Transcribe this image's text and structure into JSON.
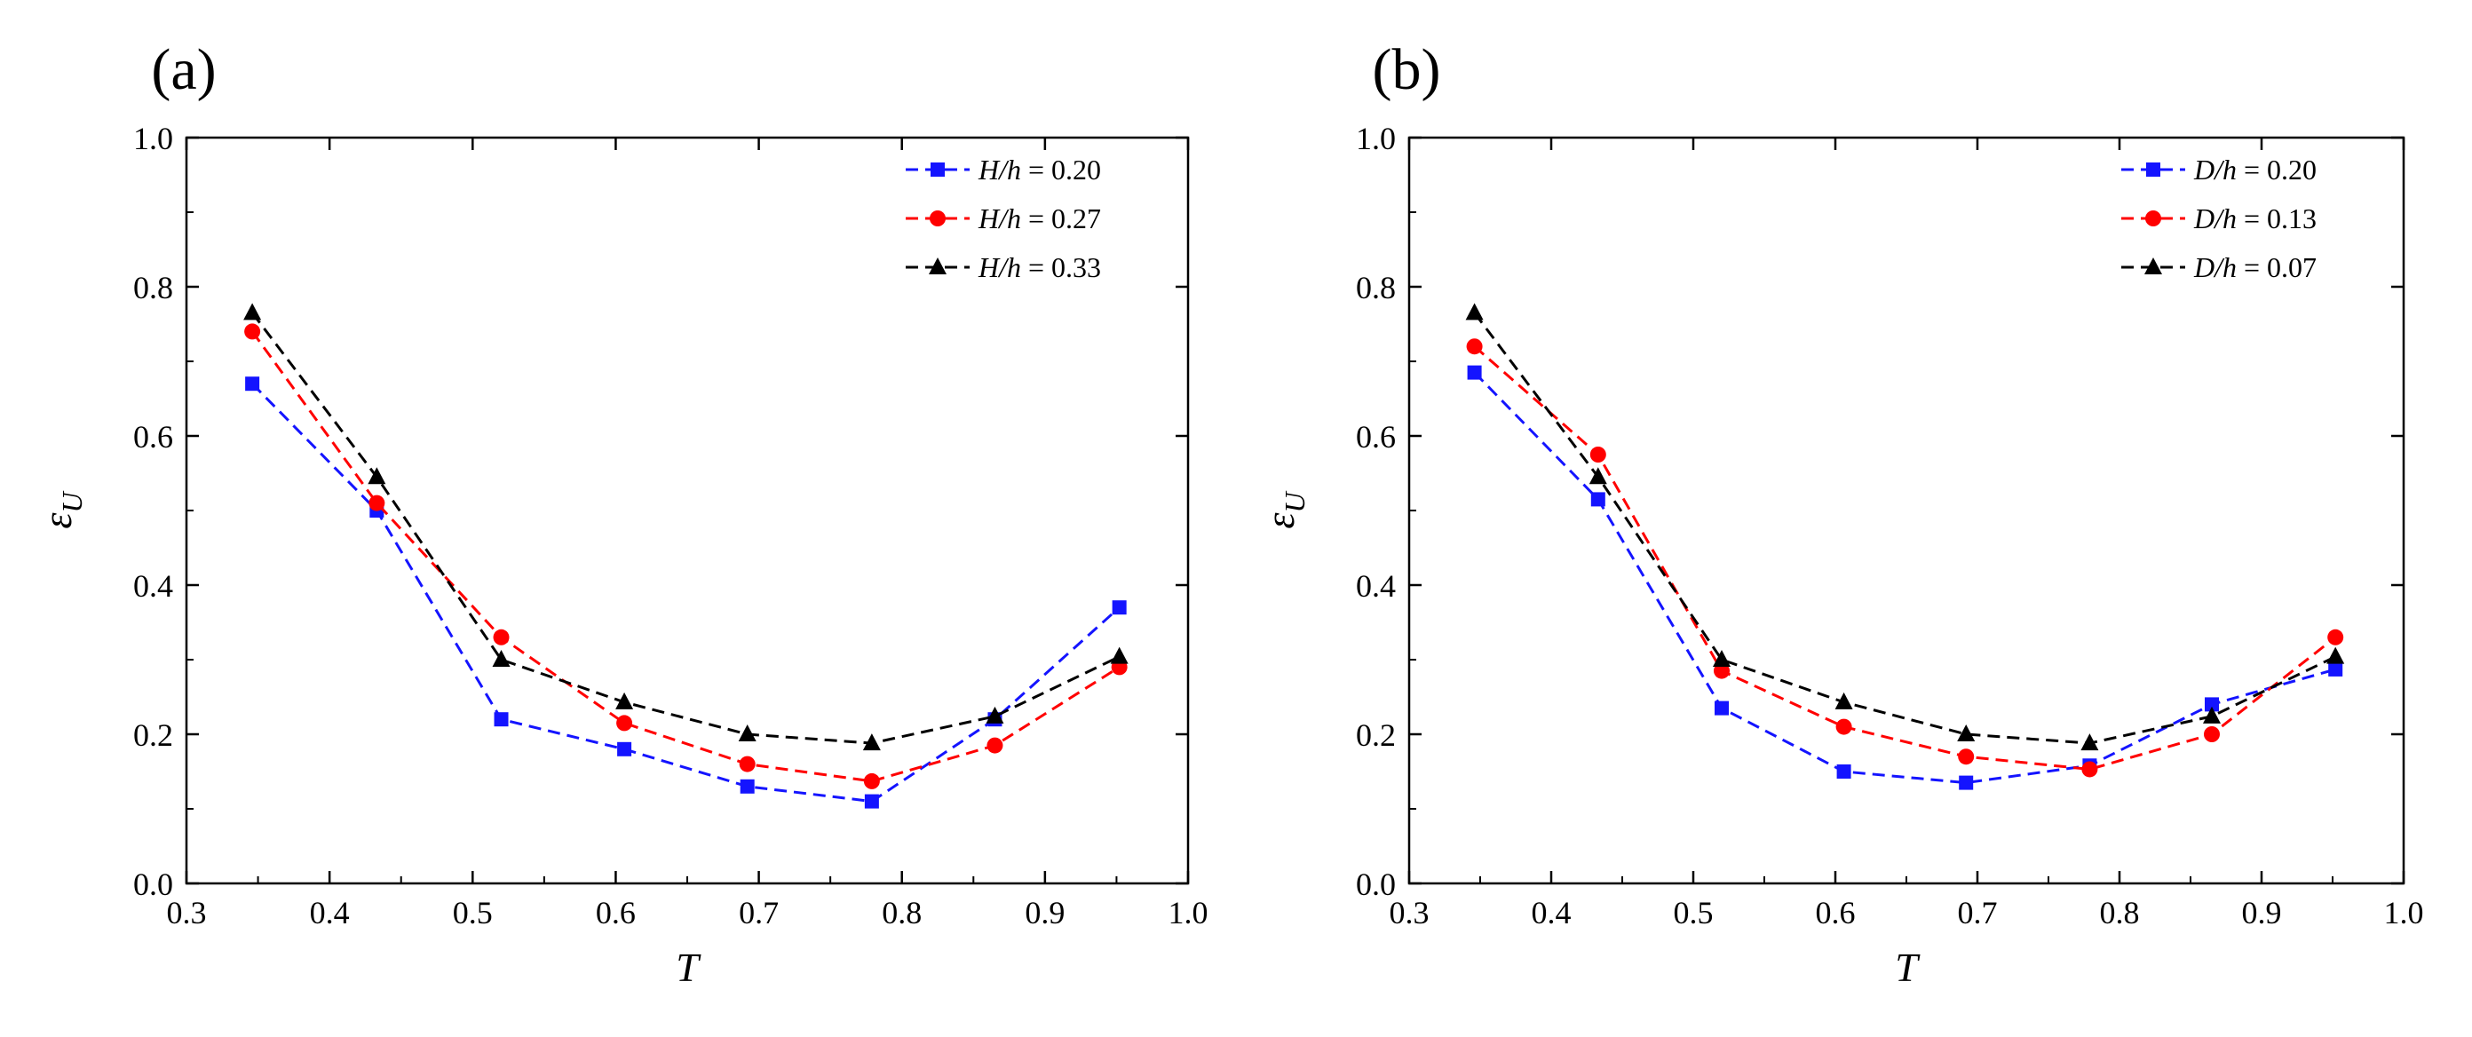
{
  "chart_data": [
    {
      "type": "line",
      "panel_label": "(a)",
      "xlabel": "T",
      "ylabel_symbol": "ε",
      "ylabel_subscript": "U",
      "xlim": [
        0.3,
        1.0
      ],
      "ylim": [
        0.0,
        1.0
      ],
      "x_ticks": [
        "0.3",
        "0.4",
        "0.5",
        "0.6",
        "0.7",
        "0.8",
        "0.9",
        "1.0"
      ],
      "y_ticks": [
        "0.0",
        "0.2",
        "0.4",
        "0.6",
        "0.8",
        "1.0"
      ],
      "grid": false,
      "legend_position": "top-right",
      "x": [
        0.346,
        0.433,
        0.52,
        0.606,
        0.692,
        0.779,
        0.865,
        0.952
      ],
      "series": [
        {
          "var": "H/h",
          "value": "0.20",
          "color": "#1414ff",
          "marker": "square",
          "values": [
            0.67,
            0.5,
            0.22,
            0.18,
            0.13,
            0.11,
            0.22,
            0.37
          ]
        },
        {
          "var": "H/h",
          "value": "0.27",
          "color": "#ff0000",
          "marker": "circle",
          "values": [
            0.74,
            0.51,
            0.33,
            0.215,
            0.16,
            0.137,
            0.185,
            0.29
          ]
        },
        {
          "var": "H/h",
          "value": "0.33",
          "color": "#000000",
          "marker": "triangle",
          "values": [
            0.765,
            0.545,
            0.3,
            0.243,
            0.2,
            0.188,
            0.224,
            0.304
          ]
        }
      ]
    },
    {
      "type": "line",
      "panel_label": "(b)",
      "xlabel": "T",
      "ylabel_symbol": "ε",
      "ylabel_subscript": "U",
      "xlim": [
        0.3,
        1.0
      ],
      "ylim": [
        0.0,
        1.0
      ],
      "x_ticks": [
        "0.3",
        "0.4",
        "0.5",
        "0.6",
        "0.7",
        "0.8",
        "0.9",
        "1.0"
      ],
      "y_ticks": [
        "0.0",
        "0.2",
        "0.4",
        "0.6",
        "0.8",
        "1.0"
      ],
      "grid": false,
      "legend_position": "top-right",
      "x": [
        0.346,
        0.433,
        0.52,
        0.606,
        0.692,
        0.779,
        0.865,
        0.952
      ],
      "series": [
        {
          "var": "D/h",
          "value": "0.20",
          "color": "#1414ff",
          "marker": "square",
          "values": [
            0.685,
            0.515,
            0.235,
            0.15,
            0.135,
            0.158,
            0.24,
            0.287
          ]
        },
        {
          "var": "D/h",
          "value": "0.13",
          "color": "#ff0000",
          "marker": "circle",
          "values": [
            0.72,
            0.575,
            0.285,
            0.21,
            0.17,
            0.153,
            0.2,
            0.33
          ]
        },
        {
          "var": "D/h",
          "value": "0.07",
          "color": "#000000",
          "marker": "triangle",
          "values": [
            0.765,
            0.545,
            0.3,
            0.243,
            0.2,
            0.188,
            0.224,
            0.304
          ]
        }
      ]
    }
  ]
}
